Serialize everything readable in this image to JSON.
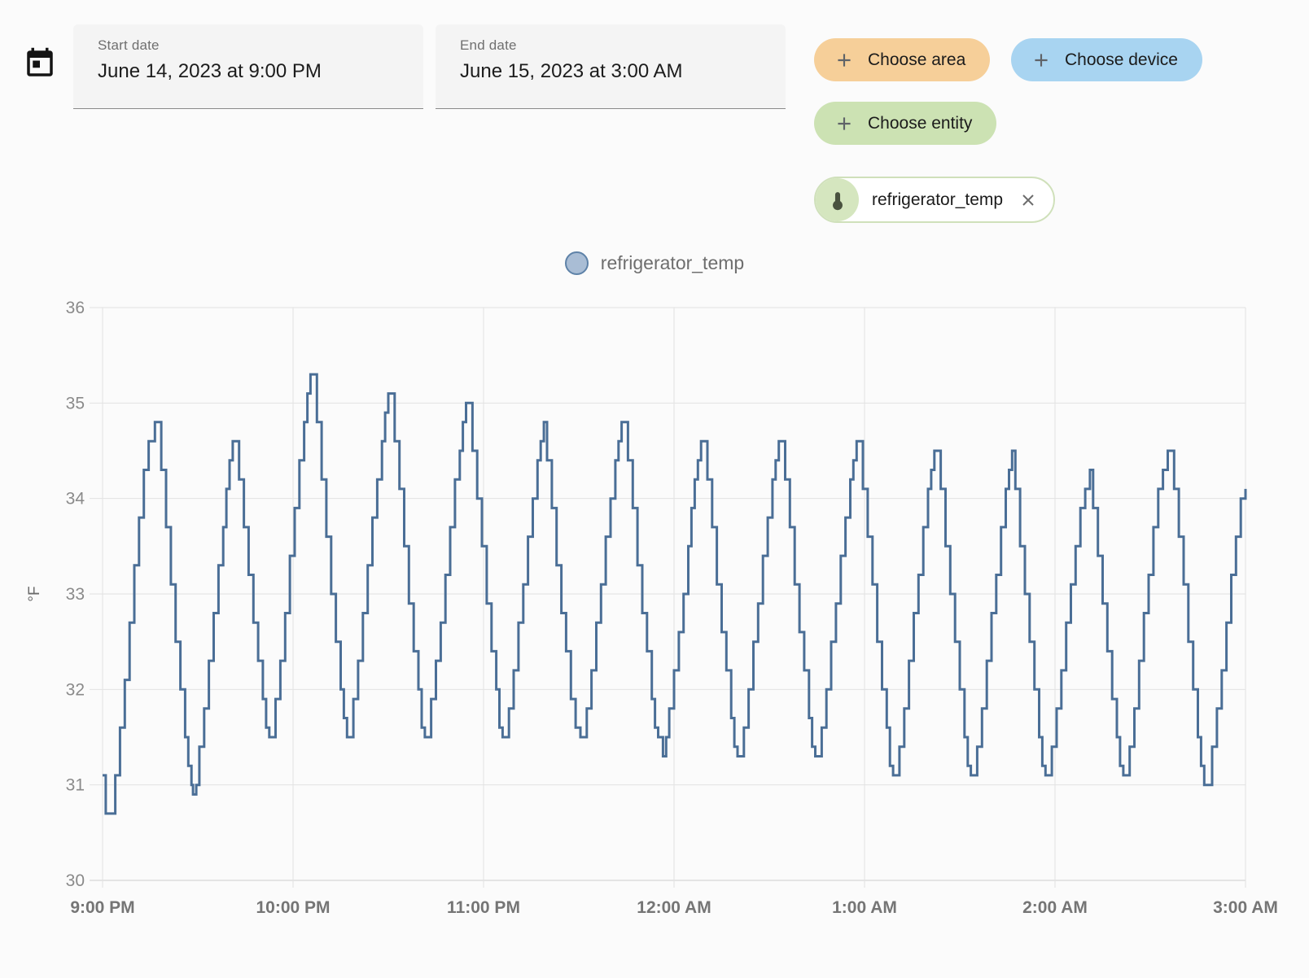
{
  "header": {
    "start_field": {
      "label": "Start date",
      "value": "June 14, 2023 at 9:00 PM"
    },
    "end_field": {
      "label": "End date",
      "value": "June 15, 2023 at 3:00 AM"
    },
    "buttons": [
      {
        "label": "Choose area",
        "bg": "#f6cf99"
      },
      {
        "label": "Choose device",
        "bg": "#a8d4f1"
      },
      {
        "label": "Choose entity",
        "bg": "#cce2b3"
      }
    ],
    "chip": {
      "label": "refrigerator_temp",
      "border_color": "#cfe0ba",
      "avatar_bg": "#d5e6bf",
      "icon": "thermometer-icon",
      "icon_color": "#49523f"
    }
  },
  "legend": {
    "label": "refrigerator_temp",
    "marker_fill": "#a9bdd5",
    "marker_border": "#5e82a8"
  },
  "chart_data": {
    "type": "line",
    "step": "after",
    "series_name": "refrigerator_temp",
    "unit": "°F",
    "grid": true,
    "legend_position": "top-center",
    "x_axis": {
      "tick_labels": [
        "9:00 PM",
        "10:00 PM",
        "11:00 PM",
        "12:00 AM",
        "1:00 AM",
        "2:00 AM",
        "3:00 AM"
      ],
      "tick_minutes": [
        0,
        60,
        120,
        180,
        240,
        300,
        360
      ],
      "range_minutes": [
        0,
        360
      ]
    },
    "y_axis": {
      "label": "°F",
      "min": 30,
      "max": 36,
      "ticks": [
        30,
        31,
        32,
        33,
        34,
        35,
        36
      ]
    },
    "style": {
      "line_color": "#4a6e96",
      "grid_color": "#e2e2e2",
      "axis_line_color": "#cccccc",
      "y_label_color": "#8a8a8a",
      "x_label_color": "#757575"
    },
    "points": [
      [
        0,
        31.1
      ],
      [
        1,
        30.7
      ],
      [
        4,
        31.1
      ],
      [
        5.5,
        31.6
      ],
      [
        7,
        32.1
      ],
      [
        8.5,
        32.7
      ],
      [
        10,
        33.3
      ],
      [
        11.5,
        33.8
      ],
      [
        13,
        34.3
      ],
      [
        14.5,
        34.6
      ],
      [
        16.5,
        34.8
      ],
      [
        18.5,
        34.3
      ],
      [
        20,
        33.7
      ],
      [
        21.5,
        33.1
      ],
      [
        23,
        32.5
      ],
      [
        24.5,
        32.0
      ],
      [
        26,
        31.5
      ],
      [
        27,
        31.2
      ],
      [
        28,
        31.0
      ],
      [
        28.5,
        30.9
      ],
      [
        29.5,
        31.0
      ],
      [
        30.5,
        31.4
      ],
      [
        32,
        31.8
      ],
      [
        33.5,
        32.3
      ],
      [
        35,
        32.8
      ],
      [
        36.5,
        33.3
      ],
      [
        38,
        33.7
      ],
      [
        39,
        34.1
      ],
      [
        40,
        34.4
      ],
      [
        41,
        34.6
      ],
      [
        43,
        34.2
      ],
      [
        44.5,
        33.7
      ],
      [
        46,
        33.2
      ],
      [
        47.5,
        32.7
      ],
      [
        49,
        32.3
      ],
      [
        50.5,
        31.9
      ],
      [
        51.5,
        31.6
      ],
      [
        52.5,
        31.5
      ],
      [
        54.5,
        31.9
      ],
      [
        56,
        32.3
      ],
      [
        57.5,
        32.8
      ],
      [
        59,
        33.4
      ],
      [
        60.5,
        33.9
      ],
      [
        62,
        34.4
      ],
      [
        63.5,
        34.8
      ],
      [
        64.5,
        35.1
      ],
      [
        65.5,
        35.3
      ],
      [
        67.5,
        34.8
      ],
      [
        69,
        34.2
      ],
      [
        70.5,
        33.6
      ],
      [
        72,
        33.0
      ],
      [
        73.5,
        32.5
      ],
      [
        75,
        32.0
      ],
      [
        76,
        31.7
      ],
      [
        77,
        31.5
      ],
      [
        79,
        31.9
      ],
      [
        80.5,
        32.3
      ],
      [
        82,
        32.8
      ],
      [
        83.5,
        33.3
      ],
      [
        85,
        33.8
      ],
      [
        86.5,
        34.2
      ],
      [
        88,
        34.6
      ],
      [
        89,
        34.9
      ],
      [
        90,
        35.1
      ],
      [
        92,
        34.6
      ],
      [
        93.5,
        34.1
      ],
      [
        95,
        33.5
      ],
      [
        96.5,
        32.9
      ],
      [
        98,
        32.4
      ],
      [
        99.5,
        32.0
      ],
      [
        100.5,
        31.6
      ],
      [
        101.5,
        31.5
      ],
      [
        103.5,
        31.9
      ],
      [
        105,
        32.3
      ],
      [
        106.5,
        32.7
      ],
      [
        108,
        33.2
      ],
      [
        109.5,
        33.7
      ],
      [
        111,
        34.2
      ],
      [
        112.5,
        34.5
      ],
      [
        113.5,
        34.8
      ],
      [
        114.5,
        35.0
      ],
      [
        116.5,
        34.5
      ],
      [
        118,
        34.0
      ],
      [
        119.5,
        33.5
      ],
      [
        121,
        32.9
      ],
      [
        122.5,
        32.4
      ],
      [
        124,
        32.0
      ],
      [
        125,
        31.6
      ],
      [
        126,
        31.5
      ],
      [
        128,
        31.8
      ],
      [
        129.5,
        32.2
      ],
      [
        131,
        32.7
      ],
      [
        132.5,
        33.1
      ],
      [
        134,
        33.6
      ],
      [
        135.5,
        34.0
      ],
      [
        137,
        34.4
      ],
      [
        138,
        34.6
      ],
      [
        139,
        34.8
      ],
      [
        140,
        34.4
      ],
      [
        141.5,
        33.9
      ],
      [
        143,
        33.3
      ],
      [
        144.5,
        32.8
      ],
      [
        146,
        32.4
      ],
      [
        147.5,
        31.9
      ],
      [
        149,
        31.6
      ],
      [
        150.5,
        31.5
      ],
      [
        152.5,
        31.8
      ],
      [
        154,
        32.2
      ],
      [
        155.5,
        32.7
      ],
      [
        157,
        33.1
      ],
      [
        158.5,
        33.6
      ],
      [
        160,
        34.0
      ],
      [
        161.5,
        34.4
      ],
      [
        162.5,
        34.6
      ],
      [
        163.5,
        34.8
      ],
      [
        165.5,
        34.4
      ],
      [
        167,
        33.9
      ],
      [
        168.5,
        33.3
      ],
      [
        170,
        32.8
      ],
      [
        171.5,
        32.4
      ],
      [
        173,
        31.9
      ],
      [
        174,
        31.6
      ],
      [
        175,
        31.5
      ],
      [
        176.5,
        31.3
      ],
      [
        177.5,
        31.5
      ],
      [
        178.5,
        31.8
      ],
      [
        180,
        32.2
      ],
      [
        181.5,
        32.6
      ],
      [
        183,
        33.0
      ],
      [
        184.5,
        33.5
      ],
      [
        185.5,
        33.9
      ],
      [
        186.5,
        34.2
      ],
      [
        187.5,
        34.4
      ],
      [
        188.5,
        34.6
      ],
      [
        190.5,
        34.2
      ],
      [
        192,
        33.7
      ],
      [
        193.5,
        33.1
      ],
      [
        195,
        32.6
      ],
      [
        196.5,
        32.2
      ],
      [
        198,
        31.7
      ],
      [
        199,
        31.4
      ],
      [
        200,
        31.3
      ],
      [
        202,
        31.6
      ],
      [
        203.5,
        32.0
      ],
      [
        205,
        32.5
      ],
      [
        206.5,
        32.9
      ],
      [
        208,
        33.4
      ],
      [
        209.5,
        33.8
      ],
      [
        211,
        34.2
      ],
      [
        212,
        34.4
      ],
      [
        213,
        34.6
      ],
      [
        215,
        34.2
      ],
      [
        216.5,
        33.7
      ],
      [
        218,
        33.1
      ],
      [
        219.5,
        32.6
      ],
      [
        221,
        32.2
      ],
      [
        222.5,
        31.7
      ],
      [
        223.5,
        31.4
      ],
      [
        224.5,
        31.3
      ],
      [
        226.5,
        31.6
      ],
      [
        228,
        32.0
      ],
      [
        229.5,
        32.5
      ],
      [
        231,
        32.9
      ],
      [
        232.5,
        33.4
      ],
      [
        234,
        33.8
      ],
      [
        235.5,
        34.2
      ],
      [
        236.5,
        34.4
      ],
      [
        237.5,
        34.6
      ],
      [
        239.5,
        34.1
      ],
      [
        241,
        33.6
      ],
      [
        242.5,
        33.1
      ],
      [
        244,
        32.5
      ],
      [
        245.5,
        32.0
      ],
      [
        247,
        31.6
      ],
      [
        248,
        31.2
      ],
      [
        249,
        31.1
      ],
      [
        251,
        31.4
      ],
      [
        252.5,
        31.8
      ],
      [
        254,
        32.3
      ],
      [
        255.5,
        32.8
      ],
      [
        257,
        33.2
      ],
      [
        258.5,
        33.7
      ],
      [
        260,
        34.1
      ],
      [
        261,
        34.3
      ],
      [
        262,
        34.5
      ],
      [
        264,
        34.1
      ],
      [
        265.5,
        33.5
      ],
      [
        267,
        33.0
      ],
      [
        268.5,
        32.5
      ],
      [
        270,
        32.0
      ],
      [
        271.5,
        31.5
      ],
      [
        272.5,
        31.2
      ],
      [
        273.5,
        31.1
      ],
      [
        275.5,
        31.4
      ],
      [
        277,
        31.8
      ],
      [
        278.5,
        32.3
      ],
      [
        280,
        32.8
      ],
      [
        281.5,
        33.2
      ],
      [
        283,
        33.7
      ],
      [
        284.5,
        34.1
      ],
      [
        285.5,
        34.3
      ],
      [
        286.5,
        34.5
      ],
      [
        287.5,
        34.1
      ],
      [
        289,
        33.5
      ],
      [
        290.5,
        33.0
      ],
      [
        292,
        32.5
      ],
      [
        293.5,
        32.0
      ],
      [
        295,
        31.5
      ],
      [
        296,
        31.2
      ],
      [
        297,
        31.1
      ],
      [
        299,
        31.4
      ],
      [
        300.5,
        31.8
      ],
      [
        302,
        32.2
      ],
      [
        303.5,
        32.7
      ],
      [
        305,
        33.1
      ],
      [
        306.5,
        33.5
      ],
      [
        308,
        33.9
      ],
      [
        309.5,
        34.1
      ],
      [
        311,
        34.3
      ],
      [
        312,
        33.9
      ],
      [
        313.5,
        33.4
      ],
      [
        315,
        32.9
      ],
      [
        316.5,
        32.4
      ],
      [
        318,
        31.9
      ],
      [
        319.5,
        31.5
      ],
      [
        320.5,
        31.2
      ],
      [
        321.5,
        31.1
      ],
      [
        323.5,
        31.4
      ],
      [
        325,
        31.8
      ],
      [
        326.5,
        32.3
      ],
      [
        328,
        32.8
      ],
      [
        329.5,
        33.2
      ],
      [
        331,
        33.7
      ],
      [
        332.5,
        34.1
      ],
      [
        334,
        34.3
      ],
      [
        335.5,
        34.5
      ],
      [
        337.5,
        34.1
      ],
      [
        339,
        33.6
      ],
      [
        340.5,
        33.1
      ],
      [
        342,
        32.5
      ],
      [
        343.5,
        32.0
      ],
      [
        345,
        31.5
      ],
      [
        346,
        31.2
      ],
      [
        347,
        31.0
      ],
      [
        349.5,
        31.4
      ],
      [
        351,
        31.8
      ],
      [
        352.5,
        32.2
      ],
      [
        354,
        32.7
      ],
      [
        355.5,
        33.2
      ],
      [
        357,
        33.6
      ],
      [
        358.5,
        34.0
      ],
      [
        360,
        34.1
      ]
    ]
  }
}
